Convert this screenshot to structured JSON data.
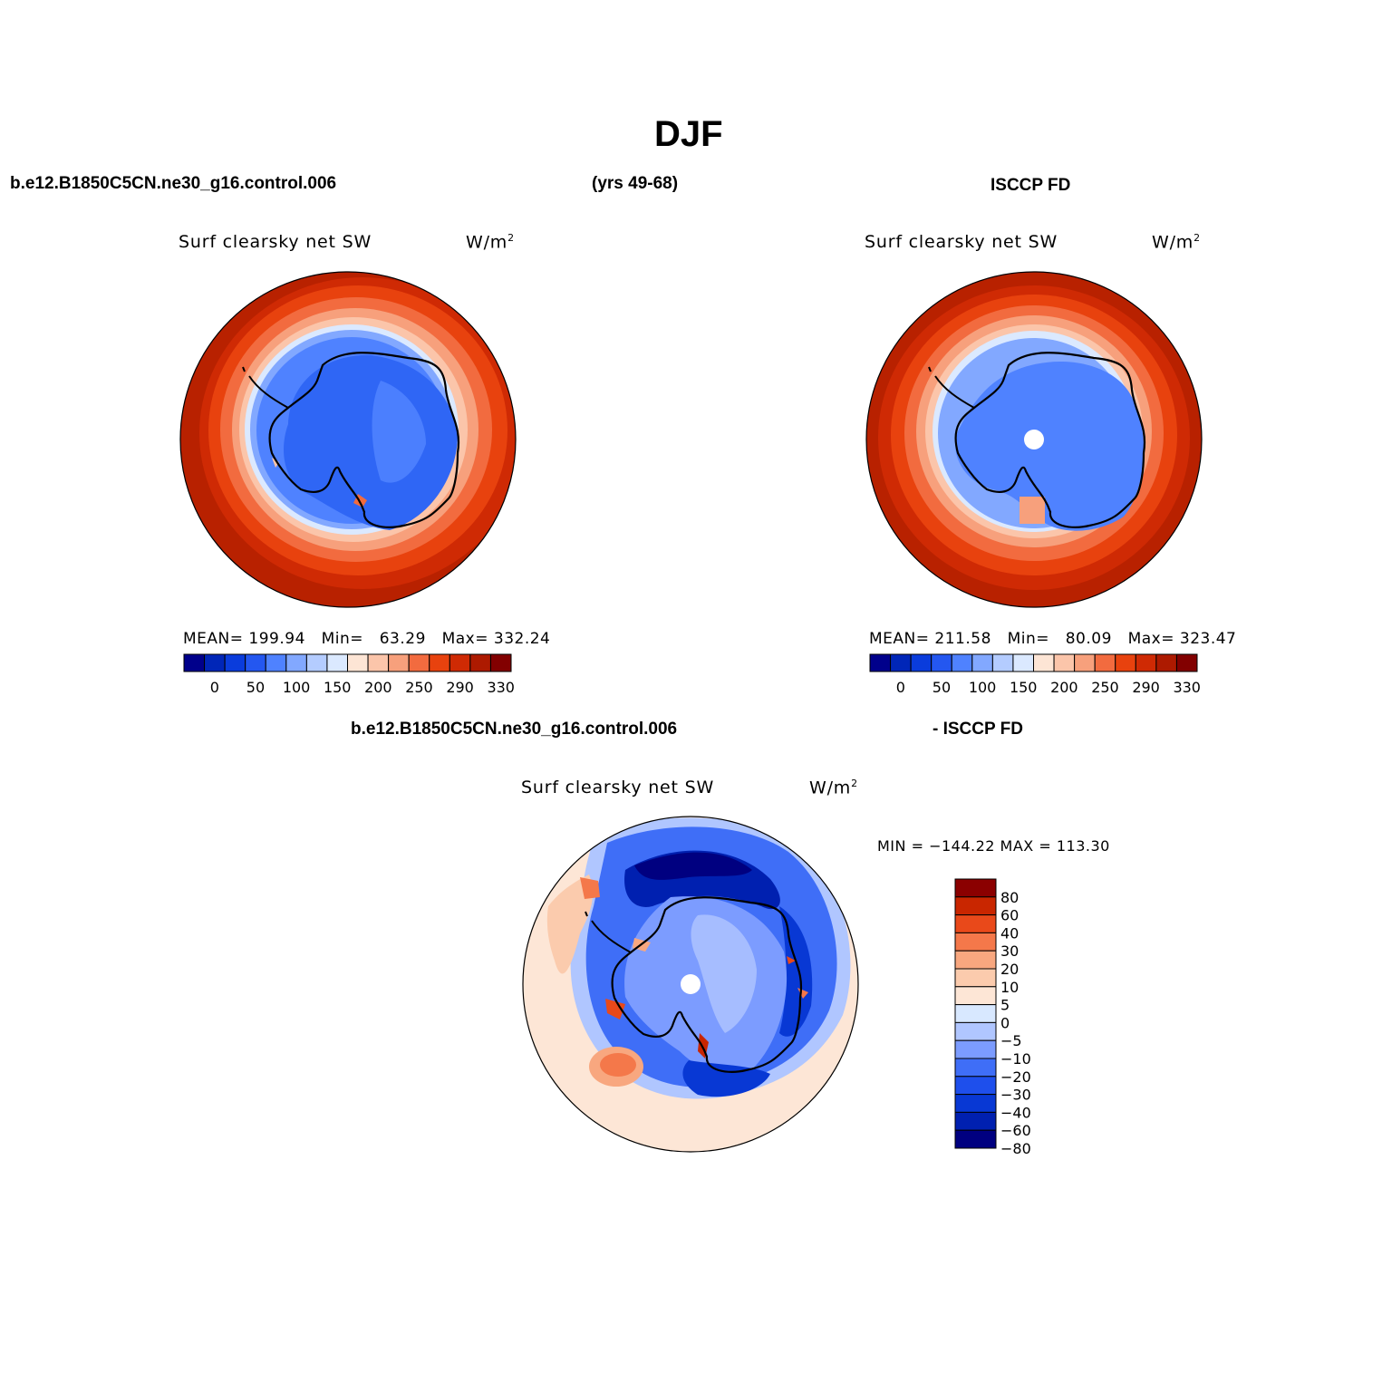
{
  "page": {
    "title": "DJF",
    "case_name": "b.e12.B1850C5CN.ne30_g16.control.006",
    "years": "(yrs 49-68)",
    "obs_name": "ISCCP FD",
    "diff_left": "b.e12.B1850C5CN.ne30_g16.control.006",
    "diff_right": "- ISCCP FD"
  },
  "panels": {
    "model": {
      "variable": "Surf clearsky net SW",
      "units_base": "W/m",
      "units_exp": "2",
      "stats": "MEAN= 199.94   Min=   63.29   Max= 332.24"
    },
    "obs": {
      "variable": "Surf clearsky net SW",
      "units_base": "W/m",
      "units_exp": "2",
      "stats": "MEAN= 211.58   Min=   80.09   Max= 323.47"
    },
    "diff": {
      "variable": "Surf clearsky net SW",
      "units_base": "W/m",
      "units_exp": "2",
      "stats": "MIN = −144.22 MAX = 113.30"
    }
  },
  "colorbars": {
    "abs": {
      "colors": [
        "#00008b",
        "#0026b8",
        "#0a3cdc",
        "#2457f0",
        "#4f82ff",
        "#82a8ff",
        "#b4ccff",
        "#dbe9ff",
        "#fde5d5",
        "#fbc5aa",
        "#f7a07c",
        "#f26b3f",
        "#e8420e",
        "#cf2a04",
        "#ad1a00",
        "#820000"
      ],
      "tick_labels": [
        "0",
        "50",
        "100",
        "150",
        "200",
        "250",
        "290",
        "330"
      ]
    },
    "diff": {
      "colors": [
        "#000080",
        "#0020b0",
        "#0838d4",
        "#1e4fec",
        "#3f6ef7",
        "#7c9cff",
        "#b0c6ff",
        "#d8e8ff",
        "#fde6d6",
        "#fbcbad",
        "#f8a77f",
        "#f4784a",
        "#e9491a",
        "#c92600",
        "#8b0000"
      ],
      "tick_labels": [
        "80",
        "60",
        "40",
        "30",
        "20",
        "10",
        "5",
        "0",
        "−5",
        "−10",
        "−20",
        "−30",
        "−40",
        "−60",
        "−80"
      ]
    }
  }
}
